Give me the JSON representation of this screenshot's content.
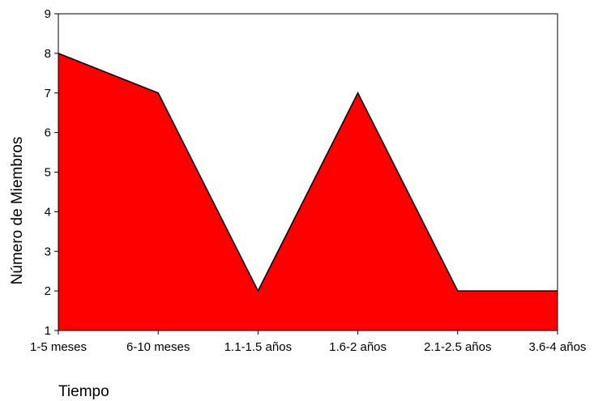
{
  "chart_data": {
    "type": "area",
    "categories": [
      "1-5 meses",
      "6-10 meses",
      "1.1-1.5 años",
      "1.6-2 años",
      "2.1-2.5 años",
      "3.6-4 años"
    ],
    "series": [
      {
        "values": [
          8,
          7,
          2,
          7,
          2,
          2
        ]
      }
    ],
    "xlabel": "Tiempo",
    "ylabel": "Número de Miembros",
    "ylim": [
      1,
      9
    ],
    "yticks": [
      1,
      2,
      3,
      4,
      5,
      6,
      7,
      8,
      9
    ],
    "grid": false,
    "fill_color": "#ff0000",
    "line_color": "#000000"
  }
}
